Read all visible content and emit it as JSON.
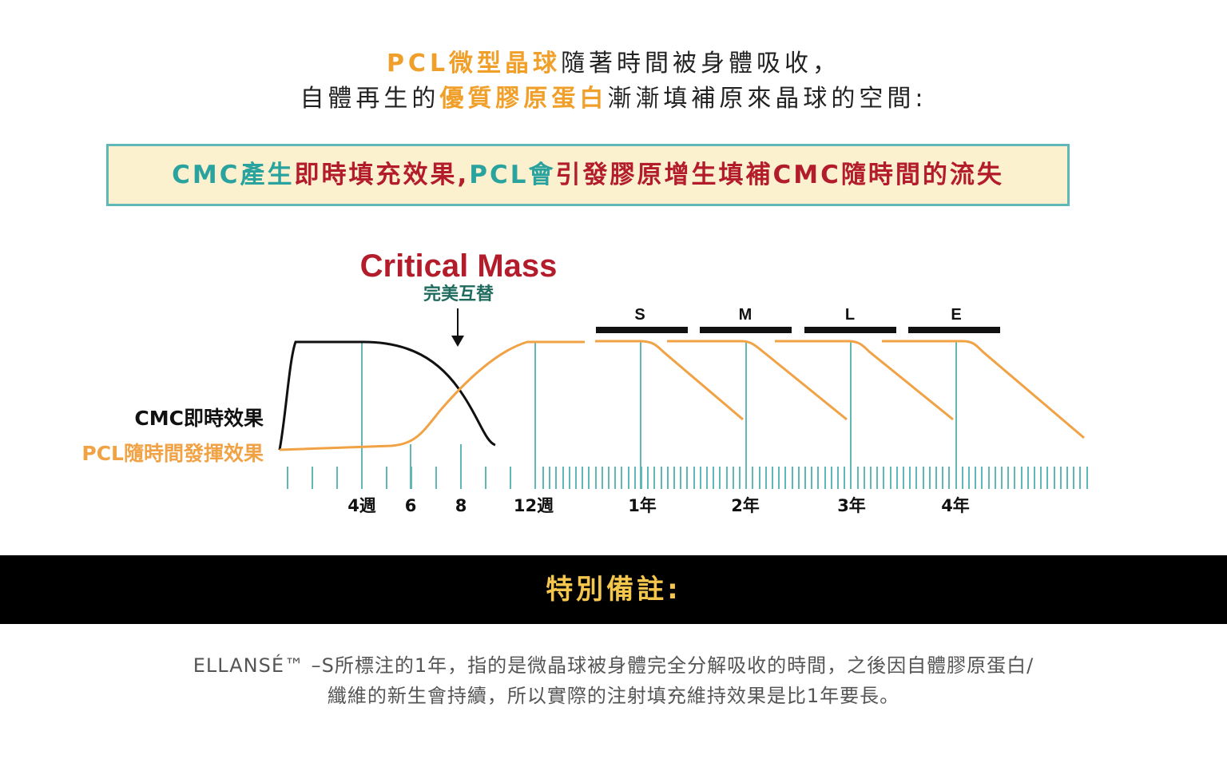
{
  "intro": {
    "line1_hl": "PCL微型晶球",
    "line1_rest": "隨著時間被身體吸收，",
    "line2_pre": "自體再生的",
    "line2_hl": "優質膠原蛋白",
    "line2_rest": "漸漸填補原來晶球的空間:"
  },
  "banner": {
    "part1": "CMC產生",
    "part2": "即時填充效果,",
    "part3": "PCL會",
    "part4": "引發膠原增生填補CMC隨時間的流失"
  },
  "chart_data": {
    "type": "line",
    "title": "Critical Mass",
    "subtitle": "完美互替",
    "series": [
      {
        "name": "CMC即時效果",
        "color": "#111111"
      },
      {
        "name": "PCL隨時間發揮效果",
        "color": "#f0a245"
      }
    ],
    "x_tick_labels": [
      "4週",
      "6",
      "8",
      "12週",
      "1年",
      "2年",
      "3年",
      "4年"
    ],
    "product_duration_labels": [
      "S",
      "M",
      "L",
      "E"
    ],
    "colors": {
      "accent_teal": "#5fb7b8",
      "title_red": "#b31c2b",
      "subtitle_green": "#1f6b5e"
    }
  },
  "note": {
    "heading": "特別備註:",
    "line1": "ELLANSÉ™ –S所標注的1年，指的是微晶球被身體完全分解吸收的時間，之後因自體膠原蛋白/",
    "line2": "纖維的新生會持續，所以實際的注射填充維持效果是比1年要長。"
  }
}
